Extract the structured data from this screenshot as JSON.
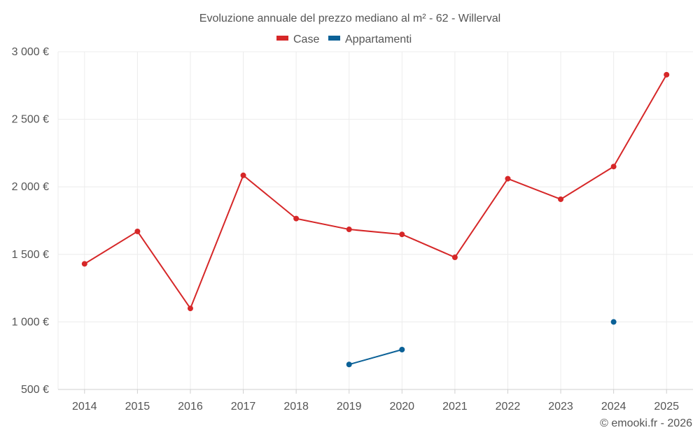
{
  "chart_data": {
    "type": "line",
    "title": "Evoluzione annuale del prezzo mediano al m² - 62 - Willerval",
    "categories": [
      "2014",
      "2015",
      "2016",
      "2017",
      "2018",
      "2019",
      "2020",
      "2021",
      "2022",
      "2023",
      "2024",
      "2025"
    ],
    "series": [
      {
        "name": "Case",
        "color": "#d62728",
        "values": [
          1430,
          1670,
          1100,
          2085,
          1765,
          1685,
          1648,
          1478,
          2060,
          1908,
          2150,
          2830
        ]
      },
      {
        "name": "Appartamenti",
        "color": "#0b6197",
        "values": [
          null,
          null,
          null,
          null,
          null,
          685,
          795,
          null,
          null,
          null,
          1000,
          null
        ]
      }
    ],
    "y_ticks": [
      500,
      1000,
      1500,
      2000,
      2500,
      3000
    ],
    "y_tick_labels": [
      "500 €",
      "1 000 €",
      "1 500 €",
      "2 000 €",
      "2 500 €",
      "3 000 €"
    ],
    "ylim": [
      500,
      3000
    ],
    "xlabel": "",
    "ylabel": "",
    "legend_position": "top-center",
    "grid": true
  },
  "footer": {
    "credit": "© emooki.fr - 2026"
  }
}
